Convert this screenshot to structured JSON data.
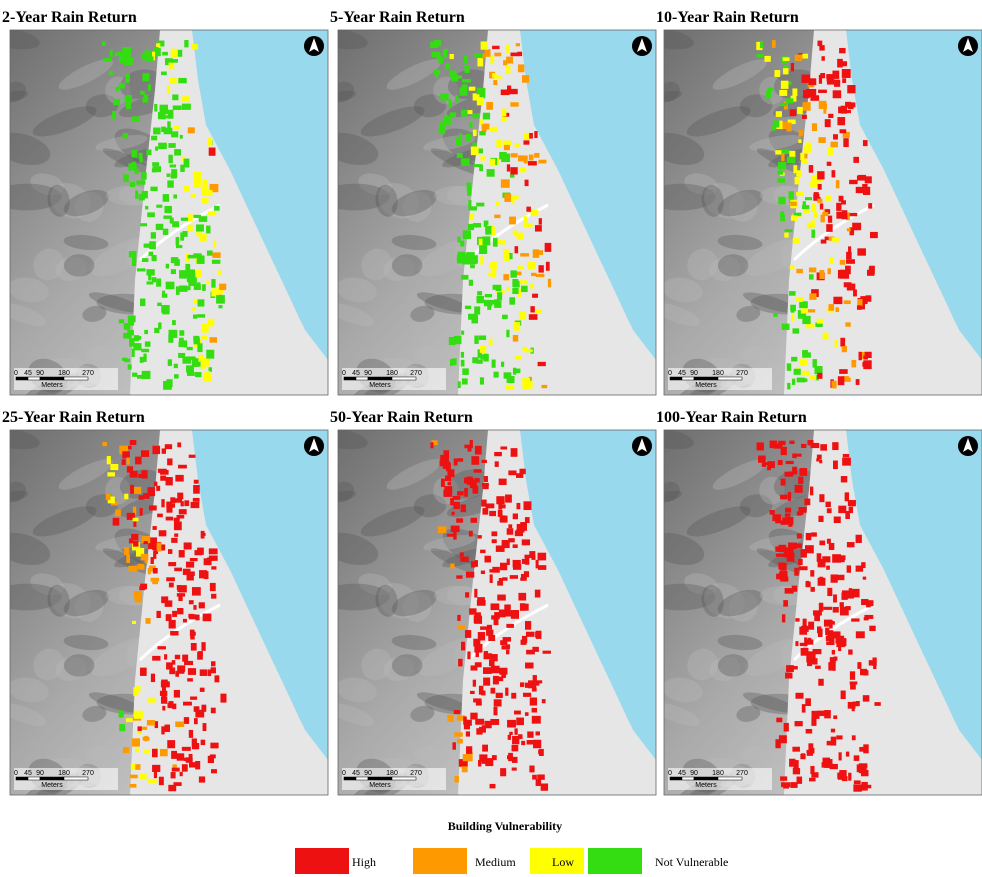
{
  "panels": [
    {
      "title": "2-Year Rain Return"
    },
    {
      "title": "5-Year Rain Return"
    },
    {
      "title": "10-Year Rain Return"
    },
    {
      "title": "25-Year Rain Return"
    },
    {
      "title": "50-Year Rain Return"
    },
    {
      "title": "100-Year Rain Return"
    }
  ],
  "scale_bar": {
    "labels": [
      "0",
      "45",
      "90",
      "180",
      "270"
    ],
    "unit": "Meters"
  },
  "legend": {
    "title": "Building Vulnerability",
    "items": [
      {
        "label": "High",
        "color": "#ee1111"
      },
      {
        "label": "Medium",
        "color": "#ff9900"
      },
      {
        "label": "Low",
        "color": "#ffff00"
      },
      {
        "label": "Not Vulnerable",
        "color": "#33dd11"
      }
    ]
  }
}
